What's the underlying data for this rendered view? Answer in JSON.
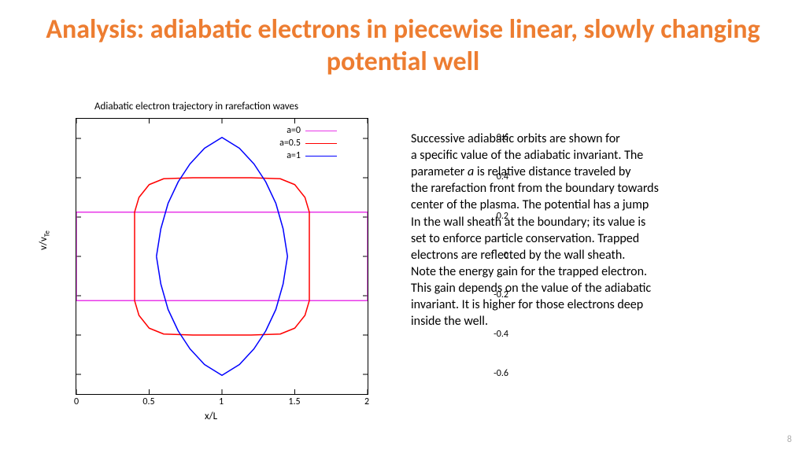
{
  "title": "Analysis: adiabatic electrons in piecewise linear, slowly changing potential well",
  "chart": {
    "type": "line",
    "title": "Adiabatic electron trajectory in rarefaction waves",
    "xlabel": "x/L",
    "ylabel": "v/v",
    "ylabel_sub": "Te",
    "xlim": [
      0,
      2
    ],
    "ylim": [
      -0.7,
      0.7
    ],
    "xticks": [
      0,
      0.5,
      1,
      1.5,
      2
    ],
    "yticks": [
      -0.6,
      -0.4,
      -0.2,
      0,
      0.2,
      0.4,
      0.6
    ],
    "background_color": "#ffffff",
    "border_color": "#000000",
    "tick_fontsize": 12,
    "label_fontsize": 13,
    "title_fontsize": 13,
    "line_width": 1.5,
    "legend_position": "top-right-inside",
    "series": [
      {
        "label": "a=0",
        "color": "#e838e8",
        "points": [
          [
            0.0,
            0.225
          ],
          [
            2.0,
            0.225
          ],
          [
            2.0,
            -0.225
          ],
          [
            0.0,
            -0.225
          ],
          [
            0.0,
            0.225
          ]
        ]
      },
      {
        "label": "a=0.5",
        "color": "#ff0000",
        "points": [
          [
            0.4,
            -0.225
          ],
          [
            0.4,
            0.225
          ],
          [
            0.43,
            0.3
          ],
          [
            0.5,
            0.365
          ],
          [
            0.6,
            0.395
          ],
          [
            0.8,
            0.4
          ],
          [
            1.2,
            0.4
          ],
          [
            1.4,
            0.395
          ],
          [
            1.5,
            0.365
          ],
          [
            1.57,
            0.3
          ],
          [
            1.6,
            0.225
          ],
          [
            1.6,
            -0.225
          ],
          [
            1.57,
            -0.3
          ],
          [
            1.5,
            -0.365
          ],
          [
            1.4,
            -0.395
          ],
          [
            1.2,
            -0.4
          ],
          [
            0.8,
            -0.4
          ],
          [
            0.6,
            -0.395
          ],
          [
            0.5,
            -0.365
          ],
          [
            0.43,
            -0.3
          ],
          [
            0.4,
            -0.225
          ]
        ]
      },
      {
        "label": "a=1",
        "color": "#0000ff",
        "points": [
          [
            0.55,
            0.0
          ],
          [
            0.58,
            0.14
          ],
          [
            0.63,
            0.27
          ],
          [
            0.7,
            0.38
          ],
          [
            0.78,
            0.47
          ],
          [
            0.88,
            0.55
          ],
          [
            1.0,
            0.605
          ],
          [
            1.12,
            0.55
          ],
          [
            1.22,
            0.47
          ],
          [
            1.3,
            0.38
          ],
          [
            1.37,
            0.27
          ],
          [
            1.42,
            0.14
          ],
          [
            1.45,
            0.0
          ],
          [
            1.42,
            -0.14
          ],
          [
            1.37,
            -0.27
          ],
          [
            1.3,
            -0.38
          ],
          [
            1.22,
            -0.47
          ],
          [
            1.12,
            -0.55
          ],
          [
            1.0,
            -0.605
          ],
          [
            0.88,
            -0.55
          ],
          [
            0.78,
            -0.47
          ],
          [
            0.7,
            -0.38
          ],
          [
            0.63,
            -0.27
          ],
          [
            0.58,
            -0.14
          ],
          [
            0.55,
            0.0
          ]
        ]
      }
    ]
  },
  "body": {
    "p1": "Successive adiabatic orbits are shown for",
    "p2": " a specific value of the adiabatic invariant. The",
    "p3": " parameter ",
    "p3em": "a",
    "p3b": " is relative distance  traveled by",
    "p4": "the rarefaction front from the boundary towards",
    "p5": "center of the plasma. The potential has a jump",
    "p6": "In the wall sheath at the boundary; its value is",
    "p7": "set to enforce  particle conservation.  Trapped",
    "p8": "electrons  are reflected by the wall sheath.",
    "p9": "Note the energy gain for the trapped electron.",
    "p10": "This gain  depends on the value of the adiabatic",
    "p11": "invariant. It is higher for those electrons deep",
    "p12": "inside the well."
  },
  "page_number": "8"
}
